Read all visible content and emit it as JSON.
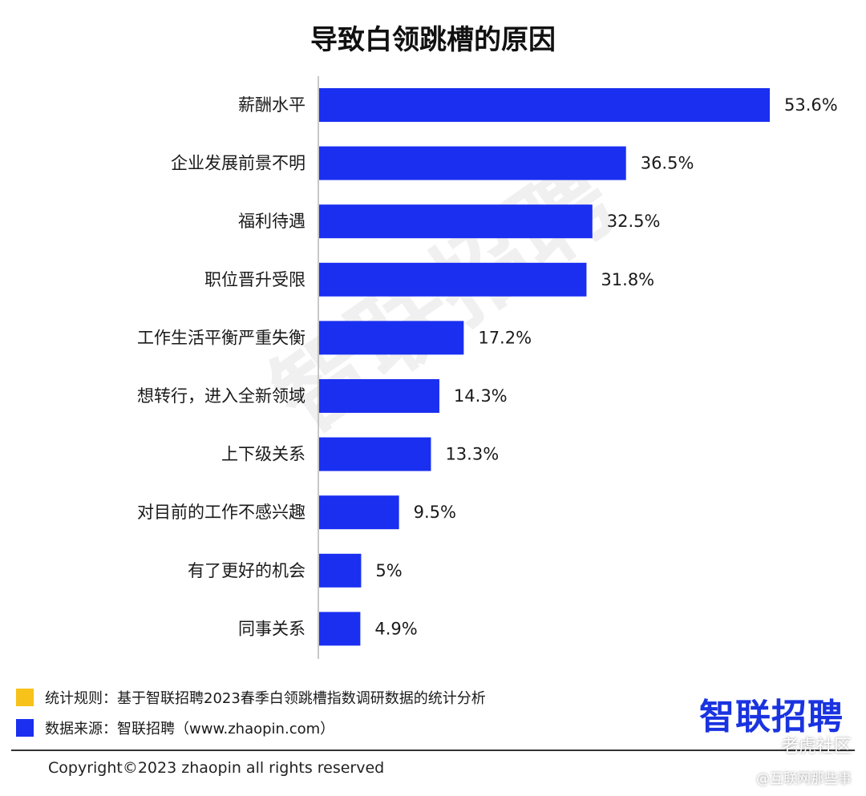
{
  "chart_data": {
    "type": "bar",
    "orientation": "horizontal",
    "title": "导致白领跳槽的原因",
    "categories": [
      "薪酬水平",
      "企业发展前景不明",
      "福利待遇",
      "职位晋升受限",
      "工作生活平衡严重失衡",
      "想转行，进入全新领域",
      "上下级关系",
      "对目前的工作不感兴趣",
      "有了更好的机会",
      "同事关系"
    ],
    "values": [
      53.6,
      36.5,
      32.5,
      31.8,
      17.2,
      14.3,
      13.3,
      9.5,
      5,
      4.9
    ],
    "value_labels": [
      "53.6%",
      "36.5%",
      "32.5%",
      "31.8%",
      "17.2%",
      "14.3%",
      "13.3%",
      "9.5%",
      "5%",
      "4.9%"
    ],
    "unit": "%",
    "bar_color": "#1a2ff0",
    "xlim": [
      0,
      53.6
    ],
    "grid": false
  },
  "watermark": "智联招聘",
  "legend": [
    {
      "text": "统计规则：基于智联招聘2023春季白领跳槽指数调研数据的统计分析",
      "color": "#f7c21a"
    },
    {
      "text": "数据来源：智联招聘（www.zhaopin.com）",
      "color": "#1a2ff0"
    }
  ],
  "brand": "智联招聘",
  "copyright": "Copyright©2023 zhaopin all rights reserved",
  "platform_badge": "老虎社区",
  "platform_handle": "@互联网那些事"
}
